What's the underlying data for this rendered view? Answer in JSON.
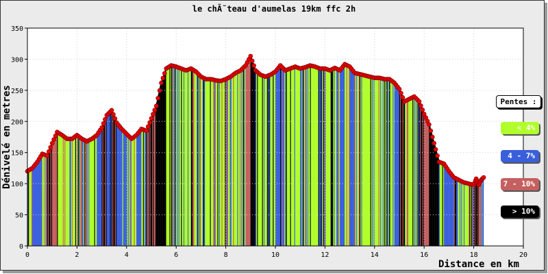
{
  "chart_data": {
    "type": "area",
    "title": "le chÃ˜teau d'aumelas 19km ffc 2h",
    "xlabel": "Distance en km",
    "ylabel": "Dénivelé en metres",
    "xlim": [
      0,
      20
    ],
    "ylim": [
      0,
      350
    ],
    "xticks": [
      "0",
      "2",
      "4",
      "6",
      "8",
      "10",
      "12",
      "14",
      "16",
      "18",
      "20"
    ],
    "yticks": [
      "0",
      "50",
      "100",
      "150",
      "200",
      "250",
      "300",
      "350"
    ],
    "grid": true,
    "series": [
      {
        "x": [
          0,
          0.2,
          0.4,
          0.6,
          0.8,
          1.0,
          1.2,
          1.4,
          1.6,
          1.8,
          2.0,
          2.2,
          2.4,
          2.6,
          2.8,
          3.0,
          3.2,
          3.4,
          3.6,
          3.8,
          4.0,
          4.2,
          4.4,
          4.6,
          4.8,
          5.0,
          5.2,
          5.4,
          5.6,
          5.8,
          6.0,
          6.2,
          6.4,
          6.6,
          6.8,
          7.0,
          7.2,
          7.4,
          7.6,
          7.8,
          8.0,
          8.2,
          8.4,
          8.6,
          8.8,
          9.0,
          9.2,
          9.4,
          9.6,
          9.8,
          10.0,
          10.2,
          10.4,
          10.6,
          10.8,
          11.0,
          11.2,
          11.4,
          11.6,
          11.8,
          12.0,
          12.2,
          12.4,
          12.6,
          12.8,
          13.0,
          13.2,
          13.4,
          13.6,
          13.8,
          14.0,
          14.2,
          14.4,
          14.6,
          14.8,
          15.0,
          15.2,
          15.4,
          15.6,
          15.8,
          16.0,
          16.2,
          16.4,
          16.6,
          16.8,
          17.0,
          17.2,
          17.4,
          17.6,
          17.8,
          18.0,
          18.1,
          18.2,
          18.3,
          18.4
        ],
        "values": [
          120,
          125,
          135,
          148,
          145,
          165,
          183,
          178,
          172,
          172,
          178,
          172,
          168,
          172,
          178,
          190,
          210,
          218,
          198,
          188,
          180,
          172,
          178,
          188,
          185,
          205,
          225,
          262,
          285,
          290,
          288,
          285,
          282,
          285,
          280,
          272,
          268,
          268,
          266,
          265,
          268,
          272,
          278,
          282,
          290,
          305,
          282,
          275,
          272,
          275,
          280,
          290,
          282,
          285,
          288,
          285,
          287,
          290,
          288,
          285,
          285,
          282,
          286,
          282,
          292,
          288,
          278,
          276,
          274,
          272,
          270,
          270,
          268,
          268,
          262,
          252,
          232,
          236,
          240,
          232,
          212,
          195,
          165,
          135,
          132,
          120,
          110,
          106,
          102,
          100,
          98,
          108,
          98,
          106,
          110
        ]
      }
    ],
    "legend": {
      "title": "Pentes :",
      "placement": "right",
      "items": [
        {
          "label": "< 4%",
          "color": "#b0ff2a",
          "text_color": "#ffffff"
        },
        {
          "label": "4 - 7%",
          "color": "#3a5fdc",
          "text_color": "#ffffff"
        },
        {
          "label": "7 - 10%",
          "color": "#c56060",
          "text_color": "#ffffff"
        },
        {
          "label": "> 10%",
          "color": "#000000",
          "text_color": "#ffffff"
        }
      ]
    },
    "colors": {
      "marker": "#e60000",
      "plot_bg": "#ffffff",
      "frame_bg": "#ebebeb"
    }
  }
}
